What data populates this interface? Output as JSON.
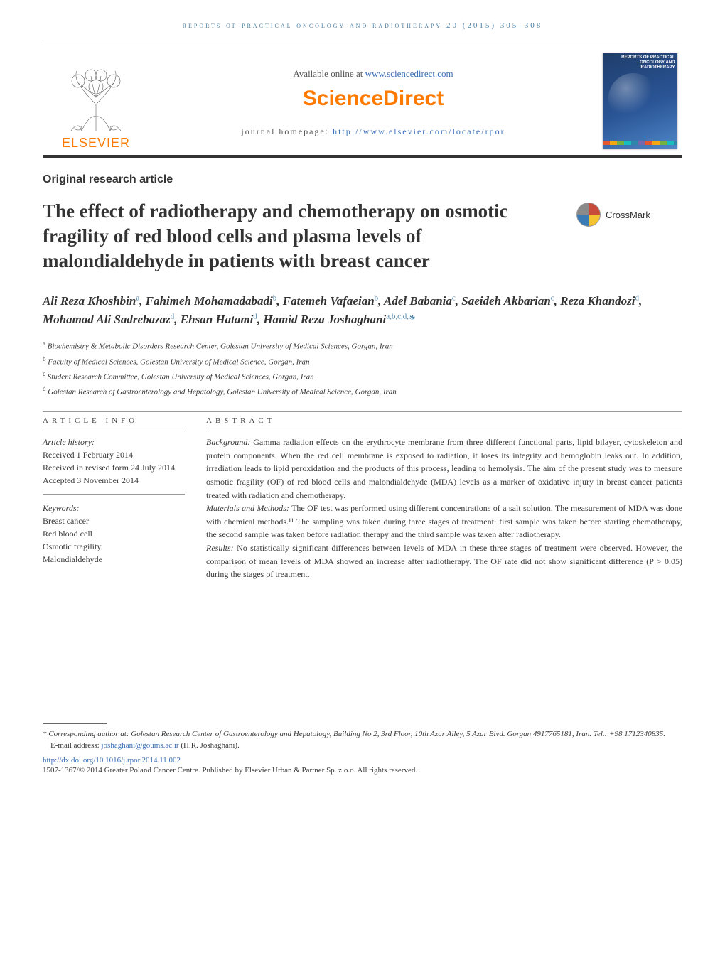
{
  "running_head": "reports of practical oncology and radiotherapy 20 (2015) 305–308",
  "header": {
    "available_prefix": "Available online at ",
    "available_link": "www.sciencedirect.com",
    "sciencedirect": "ScienceDirect",
    "homepage_prefix": "journal homepage: ",
    "homepage_link": "http://www.elsevier.com/locate/rpor",
    "elsevier_word": "ELSEVIER",
    "cover_line1": "REPORTS OF PRACTICAL",
    "cover_line2": "ONCOLOGY AND",
    "cover_line3": "RADIOTHERAPY"
  },
  "article_type": "Original research article",
  "title": "The effect of radiotherapy and chemotherapy on osmotic fragility of red blood cells and plasma levels of malondialdehyde in patients with breast cancer",
  "crossmark": "CrossMark",
  "authors_html": "Ali Reza Khoshbin<sup>a</sup>, Fahimeh Mohamadabadi<sup>b</sup>, Fatemeh Vafaeian<sup>b</sup>, Adel Babania<sup>c</sup>, Saeideh Akbarian<sup>c</sup>, Reza Khandozi<sup>d</sup>, Mohamad Ali Sadrebazaz<sup>d</sup>, Ehsan Hatami<sup>d</sup>, Hamid Reza Joshaghani<sup>a,b,c,d,</sup><span class='star'>*</span>",
  "affiliations": {
    "a": "Biochemistry & Metabolic Disorders Research Center, Golestan University of Medical Sciences, Gorgan, Iran",
    "b": "Faculty of Medical Sciences, Golestan University of Medical Science, Gorgan, Iran",
    "c": "Student Research Committee, Golestan University of Medical Sciences, Gorgan, Iran",
    "d": "Golestan Research of Gastroenterology and Hepatology, Golestan University of Medical Science, Gorgan, Iran"
  },
  "article_info": {
    "head": "article info",
    "history_label": "Article history:",
    "received": "Received 1 February 2014",
    "revised": "Received in revised form 24 July 2014",
    "accepted": "Accepted 3 November 2014",
    "keywords_label": "Keywords:",
    "keywords": [
      "Breast cancer",
      "Red blood cell",
      "Osmotic fragility",
      "Malondialdehyde"
    ]
  },
  "abstract": {
    "head": "abstract",
    "background_label": "Background:",
    "background": "Gamma radiation effects on the erythrocyte membrane from three different functional parts, lipid bilayer, cytoskeleton and protein components. When the red cell membrane is exposed to radiation, it loses its integrity and hemoglobin leaks out. In addition, irradiation leads to lipid peroxidation and the products of this process, leading to hemolysis. The aim of the present study was to measure osmotic fragility (OF) of red blood cells and malondialdehyde (MDA) levels as a marker of oxidative injury in breast cancer patients treated with radiation and chemotherapy.",
    "methods_label": "Materials and Methods:",
    "methods": "The OF test was performed using different concentrations of a salt solution. The measurement of MDA was done with chemical methods.¹¹ The sampling was taken during three stages of treatment: first sample was taken before starting chemotherapy, the second sample was taken before radiation therapy and the third sample was taken after radiotherapy.",
    "results_label": "Results:",
    "results": "No statistically significant differences between levels of MDA in these three stages of treatment were observed. However, the comparison of mean levels of MDA showed an increase after radiotherapy. The OF rate did not show significant difference (P > 0.05) during the stages of treatment."
  },
  "footnotes": {
    "corresponding": "* Corresponding author at: Golestan Research Center of Gastroenterology and Hepatology, Building No 2, 3rd Floor, 10th Azar Alley, 5 Azar Blvd. Gorgan 4917765181, Iran. Tel.: +98 1712340835.",
    "email_label": "E-mail address: ",
    "email": "joshaghani@goums.ac.ir",
    "email_suffix": " (H.R. Joshaghani).",
    "doi": "http://dx.doi.org/10.1016/j.rpor.2014.11.002",
    "copyright": "1507-1367/© 2014 Greater Poland Cancer Centre. Published by Elsevier Urban & Partner Sp. z o.o. All rights reserved."
  },
  "colors": {
    "elsevier_orange": "#ff7a00",
    "link_blue": "#3b6fb5",
    "head_blue": "#4a7fa5",
    "text": "#3a3a3a"
  }
}
